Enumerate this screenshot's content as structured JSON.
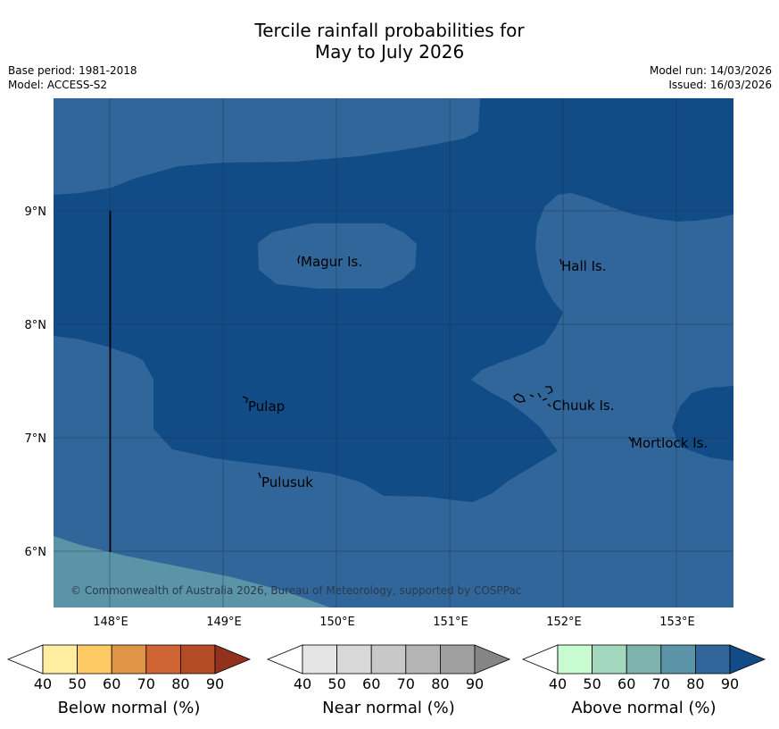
{
  "title": {
    "line1": "Tercile rainfall probabilities for",
    "line2": "May to July 2026"
  },
  "meta": {
    "base_period": "Base period: 1981-2018",
    "model": "Model: ACCESS-S2",
    "model_run": "Model run: 14/03/2026",
    "issued": "Issued: 16/03/2026"
  },
  "map": {
    "lat_ticks": [
      "9°N",
      "8°N",
      "7°N",
      "6°N"
    ],
    "lon_ticks": [
      "148°E",
      "149°E",
      "150°E",
      "151°E",
      "152°E",
      "153°E"
    ],
    "places": [
      "Magur Is.",
      "Hall Is.",
      "Pulap",
      "Chuuk Is.",
      "Mortlock Is.",
      "Pulusuk"
    ],
    "copyright": "© Commonwealth of Australia 2026, Bureau of Meteorology, supported by COSPPac",
    "colors": {
      "above_70_80": "#5b94a6",
      "above_80_90": "#31669b",
      "above_90": "#124c87",
      "grid": "#1c3048"
    }
  },
  "legends": [
    {
      "title": "Below normal (%)",
      "ticks": [
        "40",
        "50",
        "60",
        "70",
        "80",
        "90"
      ],
      "colors": [
        "#ffffff",
        "#ffeda0",
        "#fdca64",
        "#e09446",
        "#cf6535",
        "#b44c26",
        "#92311c"
      ]
    },
    {
      "title": "Near normal (%)",
      "ticks": [
        "40",
        "50",
        "60",
        "70",
        "80",
        "90"
      ],
      "colors": [
        "#ffffff",
        "#e5e5e5",
        "#d8d8d8",
        "#c8c8c8",
        "#b4b4b4",
        "#a0a0a0",
        "#858585"
      ]
    },
    {
      "title": "Above normal (%)",
      "ticks": [
        "40",
        "50",
        "60",
        "70",
        "80",
        "90"
      ],
      "colors": [
        "#ffffff",
        "#c8fbcf",
        "#a3d8bf",
        "#7db2ad",
        "#5b94a6",
        "#31669b",
        "#124c87"
      ]
    }
  ]
}
